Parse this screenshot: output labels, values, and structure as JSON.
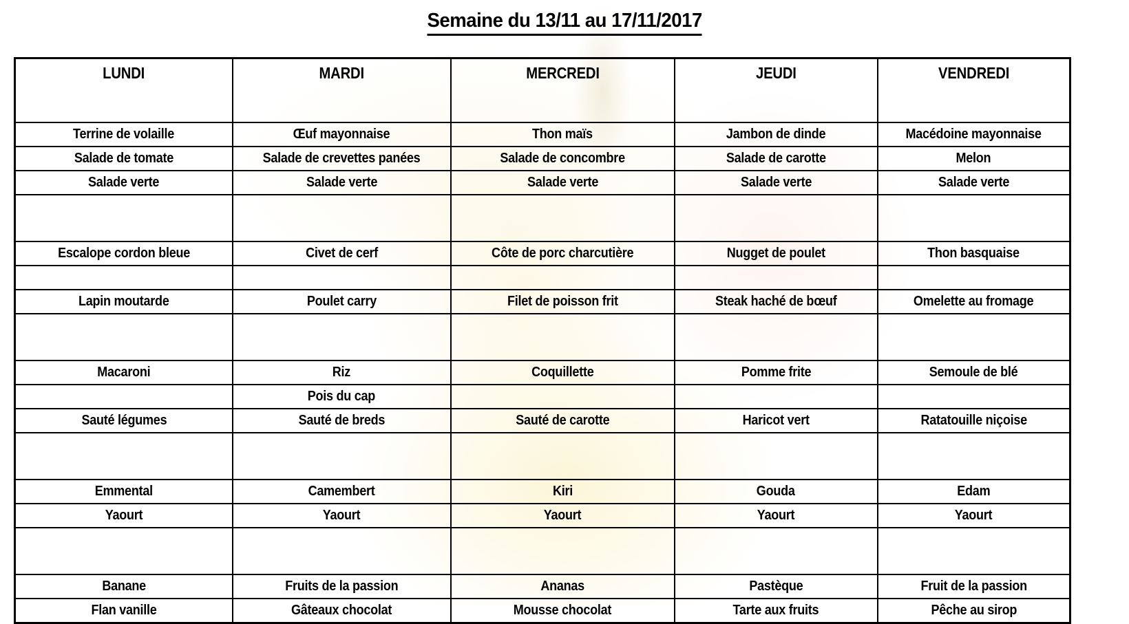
{
  "title": "Semaine du 13/11 au 17/11/2017",
  "menu": {
    "days": [
      "LUNDI",
      "MARDI",
      "MERCREDI",
      "JEUDI",
      "VENDREDI"
    ],
    "rows": [
      {
        "kind": "item",
        "cells": [
          "Terrine de volaille",
          "Œuf mayonnaise",
          "Thon maïs",
          "Jambon de dinde",
          "Macédoine mayonnaise"
        ]
      },
      {
        "kind": "item",
        "cells": [
          "Salade de tomate",
          "Salade de crevettes panées",
          "Salade de concombre",
          "Salade de carotte",
          "Melon"
        ]
      },
      {
        "kind": "item",
        "cells": [
          "Salade verte",
          "Salade verte",
          "Salade verte",
          "Salade verte",
          "Salade verte"
        ]
      },
      {
        "kind": "gap-tall",
        "cells": [
          "",
          "",
          "",
          "",
          ""
        ]
      },
      {
        "kind": "item",
        "cells": [
          "Escalope cordon bleue",
          "Civet de cerf",
          "Côte de porc charcutière",
          "Nugget de poulet",
          "Thon basquaise"
        ]
      },
      {
        "kind": "gap",
        "cells": [
          "",
          "",
          "",
          "",
          ""
        ]
      },
      {
        "kind": "item",
        "cells": [
          "Lapin moutarde",
          "Poulet carry",
          "Filet de poisson frit",
          "Steak haché de bœuf",
          "Omelette au fromage"
        ]
      },
      {
        "kind": "gap-tall",
        "cells": [
          "",
          "",
          "",
          "",
          ""
        ]
      },
      {
        "kind": "item",
        "cells": [
          "Macaroni",
          "Riz",
          "Coquillette",
          "Pomme frite",
          "Semoule de blé"
        ]
      },
      {
        "kind": "item",
        "cells": [
          "",
          "Pois du cap",
          "",
          "",
          ""
        ]
      },
      {
        "kind": "item",
        "cells": [
          "Sauté légumes",
          "Sauté de breds",
          "Sauté de carotte",
          "Haricot vert",
          "Ratatouille niçoise"
        ]
      },
      {
        "kind": "gap-tall",
        "cells": [
          "",
          "",
          "",
          "",
          ""
        ]
      },
      {
        "kind": "item",
        "cells": [
          "Emmental",
          "Camembert",
          "Kiri",
          "Gouda",
          "Edam"
        ]
      },
      {
        "kind": "item",
        "cells": [
          "Yaourt",
          "Yaourt",
          "Yaourt",
          "Yaourt",
          "Yaourt"
        ]
      },
      {
        "kind": "gap-tall",
        "cells": [
          "",
          "",
          "",
          "",
          ""
        ]
      },
      {
        "kind": "item",
        "cells": [
          "Banane",
          "Fruits de la passion",
          "Ananas",
          "Pastèque",
          "Fruit de la passion"
        ]
      },
      {
        "kind": "item",
        "cells": [
          "Flan vanille",
          "Gâteaux chocolat",
          "Mousse  chocolat",
          "Tarte aux fruits",
          "Pêche au sirop"
        ]
      }
    ]
  },
  "colors": {
    "text": "#000000",
    "border": "#000000",
    "page_bg": "#ffffff",
    "watermark_yellow": "#faf0be",
    "watermark_pink": "#fce4d8"
  }
}
